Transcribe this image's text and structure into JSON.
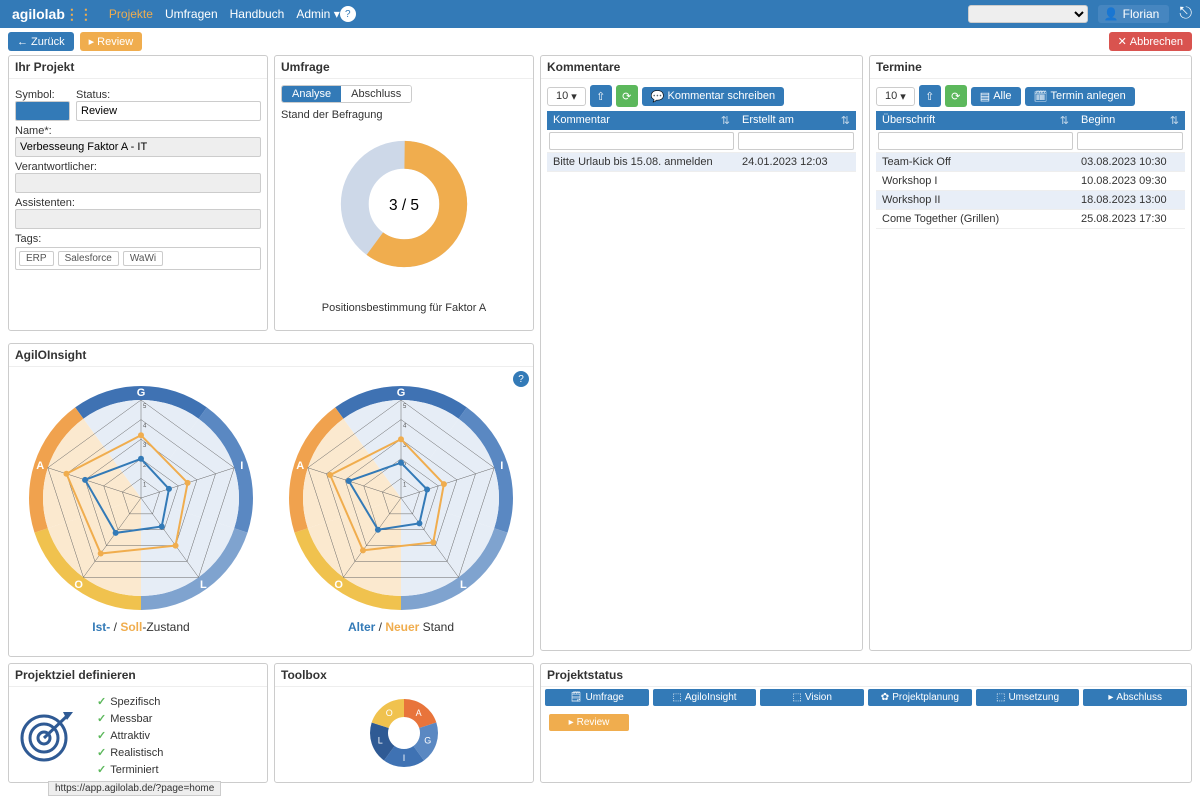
{
  "brand": {
    "part1": "agilo",
    "part2": "lab"
  },
  "nav": {
    "projekte": "Projekte",
    "umfragen": "Umfragen",
    "handbuch": "Handbuch",
    "admin": "Admin"
  },
  "user": {
    "name": "Florian"
  },
  "secondbar": {
    "back": "Zurück",
    "review": "Review",
    "cancel": "Abbrechen"
  },
  "projekt": {
    "title": "Ihr Projekt",
    "symbol_lbl": "Symbol:",
    "status_lbl": "Status:",
    "status_val": "Review",
    "name_lbl": "Name*:",
    "name_val": "Verbesseung Faktor A - IT",
    "verantw_lbl": "Verantwortlicher:",
    "verantw_val": "",
    "assist_lbl": "Assistenten:",
    "assist_val": "",
    "tags_lbl": "Tags:",
    "tags": [
      "ERP",
      "Salesforce",
      "WaWi"
    ]
  },
  "umfrage": {
    "title": "Umfrage",
    "tab_analyse": "Analyse",
    "tab_abschluss": "Abschluss",
    "stand": "Stand der Befragung",
    "donut": {
      "completed": 3,
      "total": 5,
      "color_done": "#f0ad4e",
      "color_rest": "#cdd8e8"
    },
    "caption": "Positionsbestimmung für Faktor A"
  },
  "kommentare": {
    "title": "Kommentare",
    "pagesize": "10",
    "write": "Kommentar schreiben",
    "col1": "Kommentar",
    "col2": "Erstellt am",
    "rows": [
      {
        "text": "Bitte Urlaub bis 15.08. anmelden",
        "date": "24.01.2023 12:03"
      }
    ]
  },
  "termine": {
    "title": "Termine",
    "pagesize": "10",
    "alle": "Alle",
    "anlegen": "Termin anlegen",
    "col1": "Überschrift",
    "col2": "Beginn",
    "rows": [
      {
        "t": "Team-Kick Off",
        "d": "03.08.2023 10:30"
      },
      {
        "t": "Workshop I",
        "d": "10.08.2023 09:30"
      },
      {
        "t": "Workshop II",
        "d": "18.08.2023 13:00"
      },
      {
        "t": "Come Together (Grillen)",
        "d": "25.08.2023 17:30"
      }
    ]
  },
  "insight": {
    "title": "AgilOInsight",
    "labels": [
      "G",
      "I",
      "L",
      "O",
      "A"
    ],
    "rings": 5,
    "ring_colors": [
      "#c9d6e8",
      "#a7bfdd",
      "#7fa3cf",
      "#5a88c2",
      "#3f72b3"
    ],
    "accent_segments": {
      "A": "#f0a24e",
      "O": "#f0c24e"
    },
    "left": {
      "ist": {
        "color": "#337ab7",
        "values": [
          2.0,
          1.5,
          1.8,
          2.2,
          3.0
        ]
      },
      "soll": {
        "color": "#f0ad4e",
        "values": [
          3.2,
          2.5,
          3.0,
          3.5,
          4.0
        ]
      },
      "caption_pre": "Ist-",
      "caption_mid": " / ",
      "caption_soll": "Soll",
      "caption_post": "-Zustand"
    },
    "right": {
      "alter": {
        "color": "#337ab7",
        "values": [
          1.8,
          1.4,
          1.6,
          2.0,
          2.8
        ]
      },
      "neuer": {
        "color": "#f0ad4e",
        "values": [
          3.0,
          2.3,
          2.8,
          3.3,
          3.8
        ]
      },
      "caption_pre": "Alter",
      "caption_mid": " / ",
      "caption_neuer": "Neuer",
      "caption_post": " Stand"
    }
  },
  "projektziel": {
    "title": "Projektziel definieren",
    "items": [
      "Spezifisch",
      "Messbar",
      "Attraktiv",
      "Realistisch",
      "Terminiert"
    ]
  },
  "toolbox": {
    "title": "Toolbox",
    "letters": [
      "A",
      "G",
      "I",
      "L",
      "O"
    ],
    "colors": [
      "#e8743b",
      "#5a88c2",
      "#3f72b3",
      "#2f5a94",
      "#f0c24e"
    ]
  },
  "status": {
    "title": "Projektstatus",
    "buttons": [
      "Umfrage",
      "AgiloInsight",
      "Vision",
      "Projektplanung",
      "Umsetzung",
      "Abschluss"
    ],
    "review": "Review"
  },
  "url": "https://app.agilolab.de/?page=home"
}
